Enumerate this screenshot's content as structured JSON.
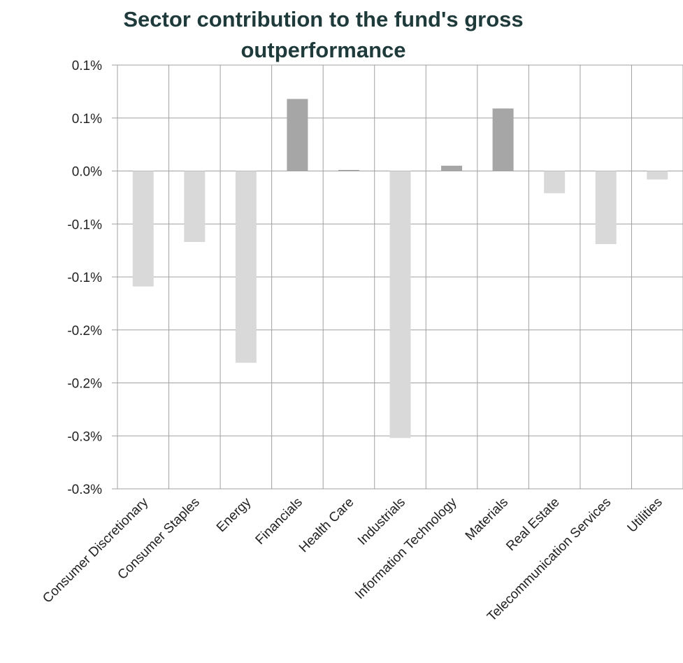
{
  "chart_data": {
    "type": "bar",
    "title": "Sector  contribution to the fund's gross outperformance",
    "xlabel": "",
    "ylabel": "",
    "categories": [
      "Consumer Discretionary",
      "Consumer Staples",
      "Energy",
      "Financials",
      "Health Care",
      "Industrials",
      "Information Technology",
      "Materials",
      "Real Estate",
      "Telecommunication Services",
      "Utilities"
    ],
    "series": [
      {
        "values": [
          -0.109,
          -0.067,
          -0.181,
          0.068,
          0.001,
          -0.252,
          0.005,
          0.059,
          -0.021,
          -0.069,
          -0.008
        ]
      }
    ],
    "ylim": [
      -0.3,
      0.1
    ],
    "y_ticks": [
      0.1,
      0.05,
      0.0,
      -0.05,
      -0.1,
      -0.15,
      -0.2,
      -0.25,
      -0.3
    ],
    "y_tick_labels": [
      "0.1%",
      "0.1%",
      "0.0%",
      "-0.1%",
      "-0.1%",
      "-0.2%",
      "-0.2%",
      "-0.3%",
      "-0.3%"
    ],
    "grid": true,
    "legend": "none",
    "colors": {
      "positive": "#a6a6a6",
      "negative": "#d9d9d9",
      "grid": "#a0a0a0",
      "text": "#222222",
      "title": "#1f3a3a"
    }
  }
}
